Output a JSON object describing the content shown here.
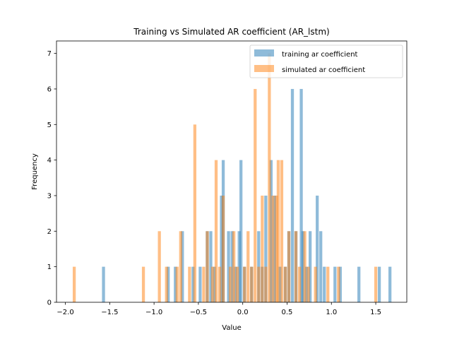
{
  "chart_data": {
    "type": "bar",
    "title": "Training vs Simulated AR coefficient (AR_lstm)",
    "xlabel": "Value",
    "ylabel": "Frequency",
    "xlim": [
      -2.1,
      1.85
    ],
    "ylim": [
      0,
      7.35
    ],
    "xticks": [
      "-2.0",
      "-1.5",
      "-1.0",
      "-0.5",
      "0.0",
      "0.5",
      "1.0",
      "1.5"
    ],
    "yticks": [
      "0",
      "1",
      "2",
      "3",
      "4",
      "5",
      "6",
      "7"
    ],
    "legend_placement": "top-right",
    "grid": false,
    "series": [
      {
        "name": "training ar coefficient",
        "color": "#1f77b4",
        "alpha": 0.5,
        "bin_width": 0.034,
        "bars": [
          {
            "x": -1.57,
            "y": 1
          },
          {
            "x": -0.84,
            "y": 1
          },
          {
            "x": -0.76,
            "y": 1
          },
          {
            "x": -0.68,
            "y": 2
          },
          {
            "x": -0.56,
            "y": 1
          },
          {
            "x": -0.48,
            "y": 1
          },
          {
            "x": -0.4,
            "y": 2
          },
          {
            "x": -0.36,
            "y": 2
          },
          {
            "x": -0.32,
            "y": 1
          },
          {
            "x": -0.24,
            "y": 3
          },
          {
            "x": -0.22,
            "y": 4
          },
          {
            "x": -0.16,
            "y": 2
          },
          {
            "x": -0.12,
            "y": 2
          },
          {
            "x": -0.08,
            "y": 1
          },
          {
            "x": -0.04,
            "y": 2
          },
          {
            "x": -0.02,
            "y": 4
          },
          {
            "x": 0.02,
            "y": 1
          },
          {
            "x": 0.1,
            "y": 1
          },
          {
            "x": 0.18,
            "y": 2
          },
          {
            "x": 0.22,
            "y": 1
          },
          {
            "x": 0.26,
            "y": 3
          },
          {
            "x": 0.32,
            "y": 4
          },
          {
            "x": 0.36,
            "y": 3
          },
          {
            "x": 0.42,
            "y": 1
          },
          {
            "x": 0.48,
            "y": 1
          },
          {
            "x": 0.52,
            "y": 2
          },
          {
            "x": 0.56,
            "y": 6
          },
          {
            "x": 0.6,
            "y": 2
          },
          {
            "x": 0.66,
            "y": 6
          },
          {
            "x": 0.68,
            "y": 2
          },
          {
            "x": 0.72,
            "y": 1
          },
          {
            "x": 0.76,
            "y": 2
          },
          {
            "x": 0.84,
            "y": 3
          },
          {
            "x": 0.88,
            "y": 2
          },
          {
            "x": 0.92,
            "y": 1
          },
          {
            "x": 1.04,
            "y": 1
          },
          {
            "x": 1.1,
            "y": 1
          },
          {
            "x": 1.31,
            "y": 1
          },
          {
            "x": 1.54,
            "y": 1
          },
          {
            "x": 1.66,
            "y": 1
          }
        ]
      },
      {
        "name": "simulated ar coefficient",
        "color": "#ff7f0e",
        "alpha": 0.5,
        "bin_width": 0.034,
        "bars": [
          {
            "x": -1.9,
            "y": 1
          },
          {
            "x": -1.12,
            "y": 1
          },
          {
            "x": -0.94,
            "y": 2
          },
          {
            "x": -0.86,
            "y": 1
          },
          {
            "x": -0.74,
            "y": 1
          },
          {
            "x": -0.7,
            "y": 2
          },
          {
            "x": -0.6,
            "y": 1
          },
          {
            "x": -0.54,
            "y": 5
          },
          {
            "x": -0.44,
            "y": 1
          },
          {
            "x": -0.4,
            "y": 2
          },
          {
            "x": -0.34,
            "y": 1
          },
          {
            "x": -0.3,
            "y": 4
          },
          {
            "x": -0.26,
            "y": 1
          },
          {
            "x": -0.22,
            "y": 3
          },
          {
            "x": -0.14,
            "y": 1
          },
          {
            "x": -0.1,
            "y": 2
          },
          {
            "x": -0.06,
            "y": 1
          },
          {
            "x": 0.02,
            "y": 1
          },
          {
            "x": 0.06,
            "y": 2
          },
          {
            "x": 0.1,
            "y": 1
          },
          {
            "x": 0.14,
            "y": 6
          },
          {
            "x": 0.18,
            "y": 1
          },
          {
            "x": 0.22,
            "y": 3
          },
          {
            "x": 0.26,
            "y": 1
          },
          {
            "x": 0.3,
            "y": 7
          },
          {
            "x": 0.34,
            "y": 3
          },
          {
            "x": 0.38,
            "y": 3
          },
          {
            "x": 0.4,
            "y": 4
          },
          {
            "x": 0.44,
            "y": 4
          },
          {
            "x": 0.48,
            "y": 1
          },
          {
            "x": 0.52,
            "y": 2
          },
          {
            "x": 0.6,
            "y": 2
          },
          {
            "x": 0.64,
            "y": 1
          },
          {
            "x": 0.7,
            "y": 2
          },
          {
            "x": 0.74,
            "y": 1
          },
          {
            "x": 0.82,
            "y": 1
          },
          {
            "x": 0.96,
            "y": 1
          },
          {
            "x": 1.08,
            "y": 1
          },
          {
            "x": 1.5,
            "y": 1
          }
        ]
      }
    ]
  }
}
